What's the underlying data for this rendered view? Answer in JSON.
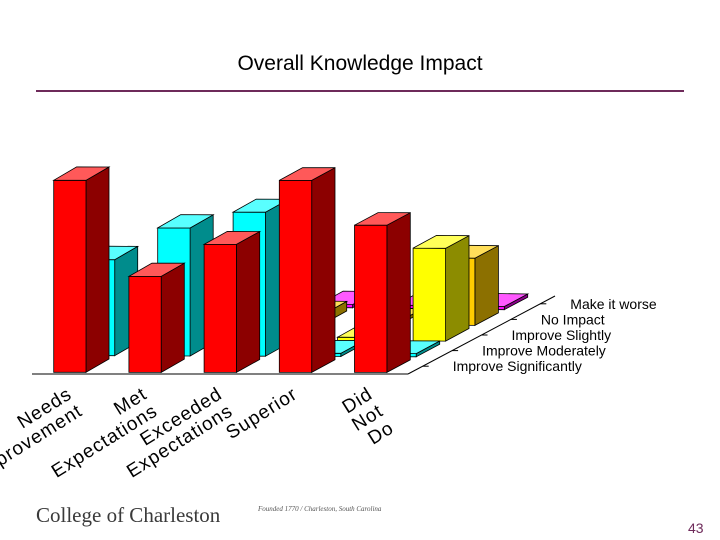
{
  "slide": {
    "title": "Overall Knowledge Impact",
    "page_number": "43",
    "logo_text": "College of Charleston",
    "logo_subtext": "Founded 1770 / Charleston, South Carolina"
  },
  "chart_data": {
    "type": "bar",
    "subtype": "3d-column",
    "title": "Overall Knowledge Impact",
    "categories": [
      "Needs Improvement",
      "Met Expectations",
      "Exceeded Expectations",
      "Superior",
      "Did Not Do"
    ],
    "series": [
      {
        "name": "Improve Significantly",
        "color": "#ff0000",
        "values": [
          60,
          30,
          40,
          60,
          46
        ]
      },
      {
        "name": "Improve Moderately",
        "color": "#00ffff",
        "values": [
          30,
          40,
          45,
          1,
          1
        ]
      },
      {
        "name": "Improve Slightly",
        "color": "#ffff00",
        "values": [
          10,
          22,
          13,
          1,
          29
        ]
      },
      {
        "name": "No Impact",
        "color": "#ffcc00",
        "values": [
          2,
          9,
          3,
          1,
          21
        ]
      },
      {
        "name": "Make it worse",
        "color": "#ff00ff",
        "values": [
          1,
          1,
          1,
          1,
          1
        ]
      }
    ],
    "legend_position": "right",
    "grid": false
  }
}
